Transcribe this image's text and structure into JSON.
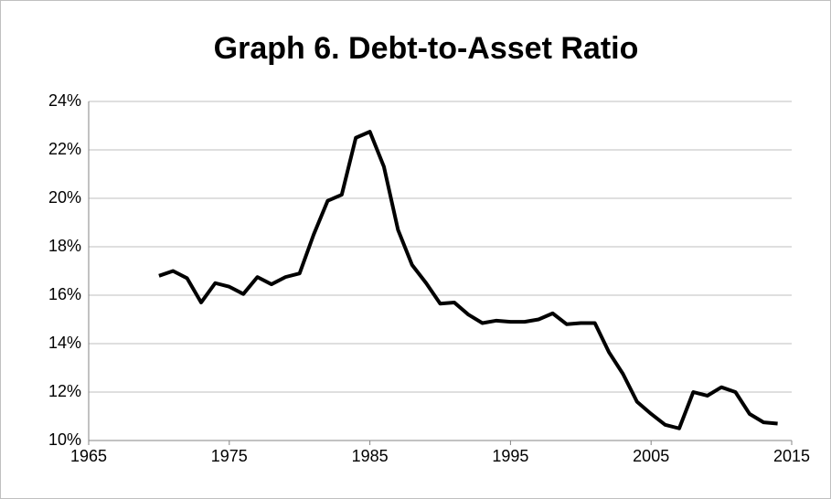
{
  "chart_data": {
    "type": "line",
    "title": "Graph 6. Debt-to-Asset Ratio",
    "x": [
      1970,
      1971,
      1972,
      1973,
      1974,
      1975,
      1976,
      1977,
      1978,
      1979,
      1980,
      1981,
      1982,
      1983,
      1984,
      1985,
      1986,
      1987,
      1988,
      1989,
      1990,
      1991,
      1992,
      1993,
      1994,
      1995,
      1996,
      1997,
      1998,
      1999,
      2000,
      2001,
      2002,
      2003,
      2004,
      2005,
      2006,
      2007,
      2008,
      2009,
      2010,
      2011,
      2012,
      2013,
      2014
    ],
    "series": [
      {
        "color": "#000000",
        "values": [
          16.8,
          17.0,
          16.7,
          15.7,
          16.5,
          16.35,
          16.05,
          16.75,
          16.45,
          16.75,
          16.9,
          18.5,
          19.9,
          20.15,
          22.5,
          22.75,
          21.3,
          18.7,
          17.25,
          16.5,
          15.65,
          15.7,
          15.2,
          14.85,
          14.95,
          14.9,
          14.9,
          15.0,
          15.25,
          14.8,
          14.85,
          14.85,
          13.65,
          12.75,
          11.6,
          11.1,
          10.65,
          10.5,
          12.0,
          11.85,
          12.2,
          12.0,
          11.1,
          10.75,
          10.7
        ]
      }
    ],
    "xlim": [
      1965,
      2015
    ],
    "xticks": [
      1965,
      1975,
      1985,
      1995,
      2005,
      2015
    ],
    "ylim": [
      10,
      24
    ],
    "yticks": [
      {
        "value": 10,
        "label": "10%"
      },
      {
        "value": 12,
        "label": "12%"
      },
      {
        "value": 14,
        "label": "14%"
      },
      {
        "value": 16,
        "label": "16%"
      },
      {
        "value": 18,
        "label": "18%"
      },
      {
        "value": 20,
        "label": "20%"
      },
      {
        "value": 22,
        "label": "22%"
      },
      {
        "value": 24,
        "label": "24%"
      }
    ],
    "grid": true
  }
}
